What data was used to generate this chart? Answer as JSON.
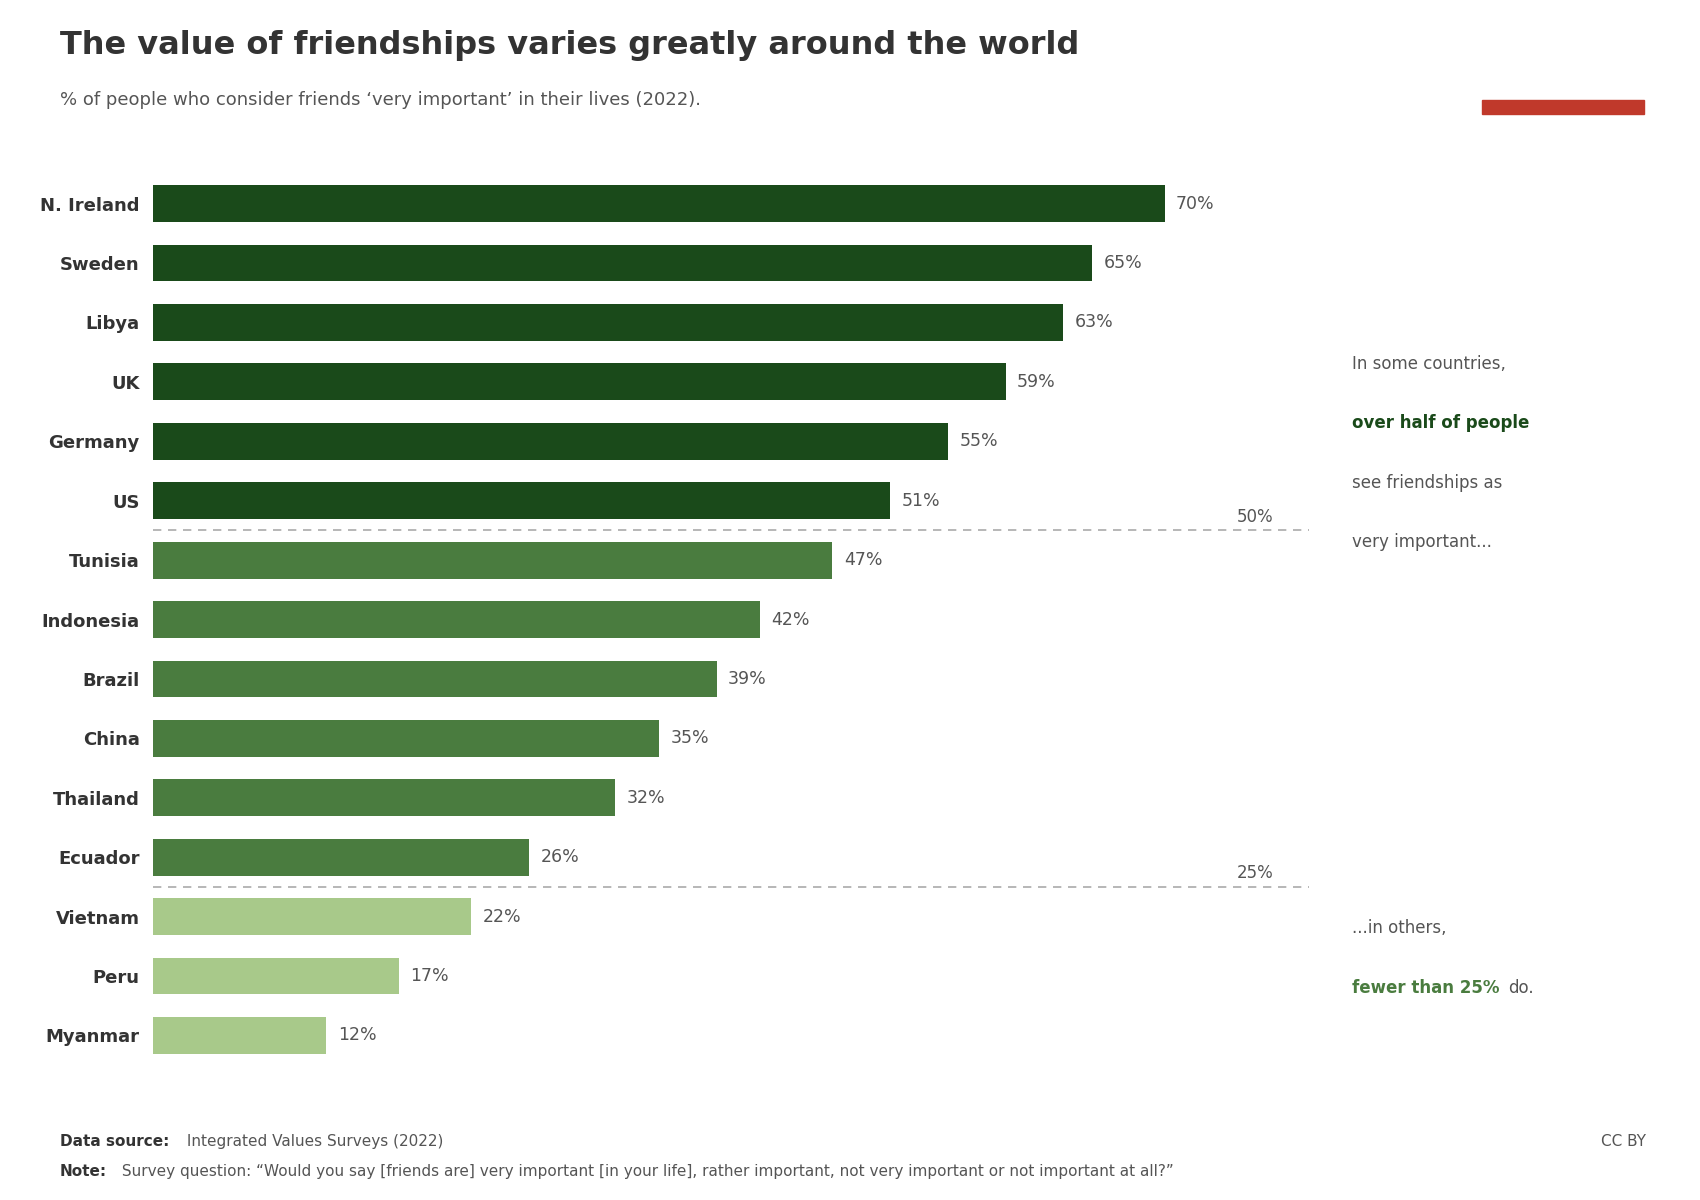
{
  "title": "The value of friendships varies greatly around the world",
  "subtitle": "% of people who consider friends ‘very important’ in their lives (2022).",
  "countries": [
    "N. Ireland",
    "Sweden",
    "Libya",
    "UK",
    "Germany",
    "US",
    "Tunisia",
    "Indonesia",
    "Brazil",
    "China",
    "Thailand",
    "Ecuador",
    "Vietnam",
    "Peru",
    "Myanmar"
  ],
  "values": [
    70,
    65,
    63,
    59,
    55,
    51,
    47,
    42,
    39,
    35,
    32,
    26,
    22,
    17,
    12
  ],
  "bar_colors": [
    "#1a4a1a",
    "#1a4a1a",
    "#1a4a1a",
    "#1a4a1a",
    "#1a4a1a",
    "#1a4a1a",
    "#4a7c3f",
    "#4a7c3f",
    "#4a7c3f",
    "#4a7c3f",
    "#4a7c3f",
    "#4a7c3f",
    "#a8c98a",
    "#a8c98a",
    "#a8c98a"
  ],
  "threshold_50": 50,
  "threshold_25": 25,
  "datasource_bold": "Data source:",
  "datasource_rest": " Integrated Values Surveys (2022)",
  "note_bold": "Note:",
  "note_rest": " Survey question: “Would you say [friends are] very important [in your life], rather important, not very important or not important at all?”",
  "cc_by": "CC BY",
  "owid_logo_bg": "#1a3a5c",
  "owid_logo_red": "#c0392b",
  "dark_green": "#1a4a1a",
  "medium_green": "#4a7c3f",
  "light_green": "#a8c98a",
  "annotation_green": "#4a7c3f",
  "bg_color": "#ffffff",
  "text_color": "#555555",
  "title_color": "#333333"
}
